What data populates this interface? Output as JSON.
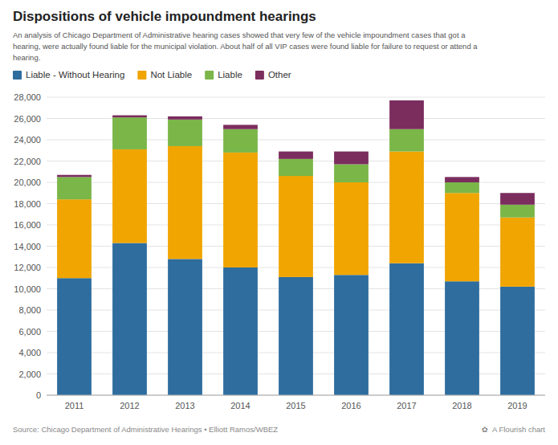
{
  "chart_data": {
    "type": "bar",
    "stacked": true,
    "title": "Dispositions of vehicle impoundment hearings",
    "subtitle": "An analysis of Chicago Department of Administrative hearing cases showed that very few of the vehicle impoundment cases that got a\nhearing, were actually found liable for the municipal violation. About half of all VIP cases were found liable for failure to request or attend a\nhearing.",
    "annotations": [
      "Source: Chicago Department of Administrative Hearings • Elliott Ramos/WBEZ",
      "✿",
      "A Flourish chart"
    ],
    "categories": [
      "2011",
      "2012",
      "2013",
      "2014",
      "2015",
      "2016",
      "2017",
      "2018",
      "2019"
    ],
    "series": [
      {
        "name": "Liable - Without Hearing",
        "color": "#2e6d9e",
        "values": [
          11000,
          14300,
          12800,
          12000,
          11100,
          11300,
          12400,
          10700,
          10200
        ]
      },
      {
        "name": "Not Liable",
        "color": "#f0a500",
        "values": [
          7400,
          8800,
          10600,
          10800,
          9500,
          8700,
          10500,
          8300,
          6500
        ]
      },
      {
        "name": "Liable",
        "color": "#7ab648",
        "values": [
          2100,
          3000,
          2500,
          2200,
          1600,
          1700,
          2100,
          1000,
          1200
        ]
      },
      {
        "name": "Other",
        "color": "#7b2d5e",
        "values": [
          200,
          200,
          300,
          400,
          700,
          1200,
          2700,
          500,
          1100
        ]
      }
    ],
    "ylim": [
      0,
      28000
    ],
    "yticks": [
      0,
      {
        "value": 2000,
        "label": "2,000"
      },
      {
        "value": 4000,
        "label": "4,000"
      },
      {
        "value": 6000,
        "label": "6,000"
      },
      {
        "value": 8000,
        "label": "8,000"
      },
      {
        "value": 10000,
        "label": "10,000"
      },
      {
        "value": 12000,
        "label": "12,000"
      },
      {
        "value": 14000,
        "label": "14,000"
      },
      {
        "value": 16000,
        "label": "16,000"
      },
      {
        "value": 18000,
        "label": "18,000"
      },
      {
        "value": 20000,
        "label": "20,000"
      },
      {
        "value": 22000,
        "label": "22,000"
      },
      {
        "value": 24000,
        "label": "24,000"
      },
      {
        "value": 26000,
        "label": "26,000"
      },
      {
        "value": 28000,
        "label": "28,000"
      }
    ],
    "grid": true,
    "legend": "top-left"
  }
}
